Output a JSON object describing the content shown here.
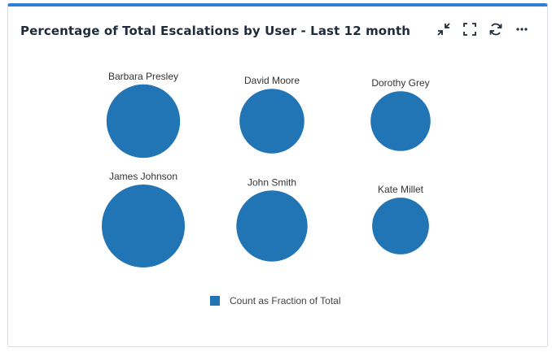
{
  "header": {
    "title": "Percentage of Total Escalations by User - Last 12 month",
    "tools": [
      {
        "name": "collapse-icon"
      },
      {
        "name": "fullscreen-icon"
      },
      {
        "name": "refresh-icon"
      },
      {
        "name": "more-icon"
      }
    ]
  },
  "colors": {
    "accent": "#2f7fd6",
    "bubble": "#2275b4"
  },
  "legend": {
    "label": "Count as Fraction of Total"
  },
  "chart_data": {
    "type": "bubble",
    "title": "Percentage of Total Escalations by User - Last 12 month",
    "series": [
      {
        "name": "Count as Fraction of Total",
        "points": [
          {
            "label": "Barbara Presley",
            "value": 0.178
          },
          {
            "label": "David Moore",
            "value": 0.138
          },
          {
            "label": "Dorothy Grey",
            "value": 0.118
          },
          {
            "label": "James Johnson",
            "value": 0.227
          },
          {
            "label": "John Smith",
            "value": 0.167
          },
          {
            "label": "Kate Millet",
            "value": 0.106
          }
        ]
      }
    ],
    "legend_position": "bottom"
  }
}
